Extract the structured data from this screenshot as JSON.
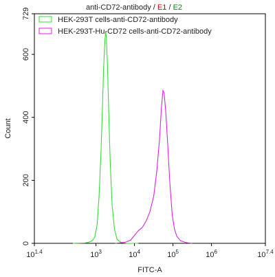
{
  "chart_data": {
    "type": "line",
    "title": {
      "main": "anti-CD72-antibody",
      "sep1": " / ",
      "e1": "E1",
      "sep2": " / ",
      "e2": "E2",
      "e1_color": "#cc0000",
      "e2_color": "#008800"
    },
    "xlabel": "FITC-A",
    "ylabel": "Count",
    "xscale": "log",
    "xlim": [
      1.4,
      7.4
    ],
    "ylim": [
      0,
      729
    ],
    "x_ticks": [
      {
        "exp": 1.4,
        "base": "10",
        "sup": "1.4"
      },
      {
        "exp": 3,
        "base": "10",
        "sup": "3"
      },
      {
        "exp": 4,
        "base": "10",
        "sup": "4"
      },
      {
        "exp": 5,
        "base": "10",
        "sup": "5"
      },
      {
        "exp": 6,
        "base": "10",
        "sup": "6"
      },
      {
        "exp": 7.4,
        "base": "10",
        "sup": "7.4"
      }
    ],
    "y_ticks": [
      0,
      200,
      400,
      600,
      729
    ],
    "legend_position": "top-left",
    "series": [
      {
        "name": "HEK-293T cells-anti-CD72-antibody",
        "color": "#33dd33",
        "points": [
          [
            2.4,
            0
          ],
          [
            2.7,
            1
          ],
          [
            2.8,
            3
          ],
          [
            2.9,
            8
          ],
          [
            2.97,
            20
          ],
          [
            3.03,
            60
          ],
          [
            3.08,
            150
          ],
          [
            3.13,
            290
          ],
          [
            3.17,
            440
          ],
          [
            3.2,
            560
          ],
          [
            3.23,
            640
          ],
          [
            3.25,
            672
          ],
          [
            3.27,
            655
          ],
          [
            3.3,
            560
          ],
          [
            3.33,
            420
          ],
          [
            3.37,
            260
          ],
          [
            3.42,
            120
          ],
          [
            3.48,
            45
          ],
          [
            3.55,
            12
          ],
          [
            3.65,
            3
          ],
          [
            3.8,
            0
          ],
          [
            4.1,
            0
          ]
        ]
      },
      {
        "name": "HEK-293T-Hu-CD72 cells-anti-CD72-antibody",
        "color": "#dd22dd",
        "points": [
          [
            3.5,
            0
          ],
          [
            3.75,
            3
          ],
          [
            3.9,
            10
          ],
          [
            4.0,
            25
          ],
          [
            4.1,
            40
          ],
          [
            4.2,
            50
          ],
          [
            4.3,
            70
          ],
          [
            4.4,
            100
          ],
          [
            4.5,
            150
          ],
          [
            4.58,
            230
          ],
          [
            4.65,
            330
          ],
          [
            4.7,
            430
          ],
          [
            4.74,
            485
          ],
          [
            4.77,
            478
          ],
          [
            4.81,
            420
          ],
          [
            4.86,
            320
          ],
          [
            4.92,
            190
          ],
          [
            4.98,
            90
          ],
          [
            5.04,
            45
          ],
          [
            5.1,
            22
          ],
          [
            5.2,
            8
          ],
          [
            5.35,
            2
          ],
          [
            5.5,
            0
          ]
        ]
      }
    ]
  }
}
